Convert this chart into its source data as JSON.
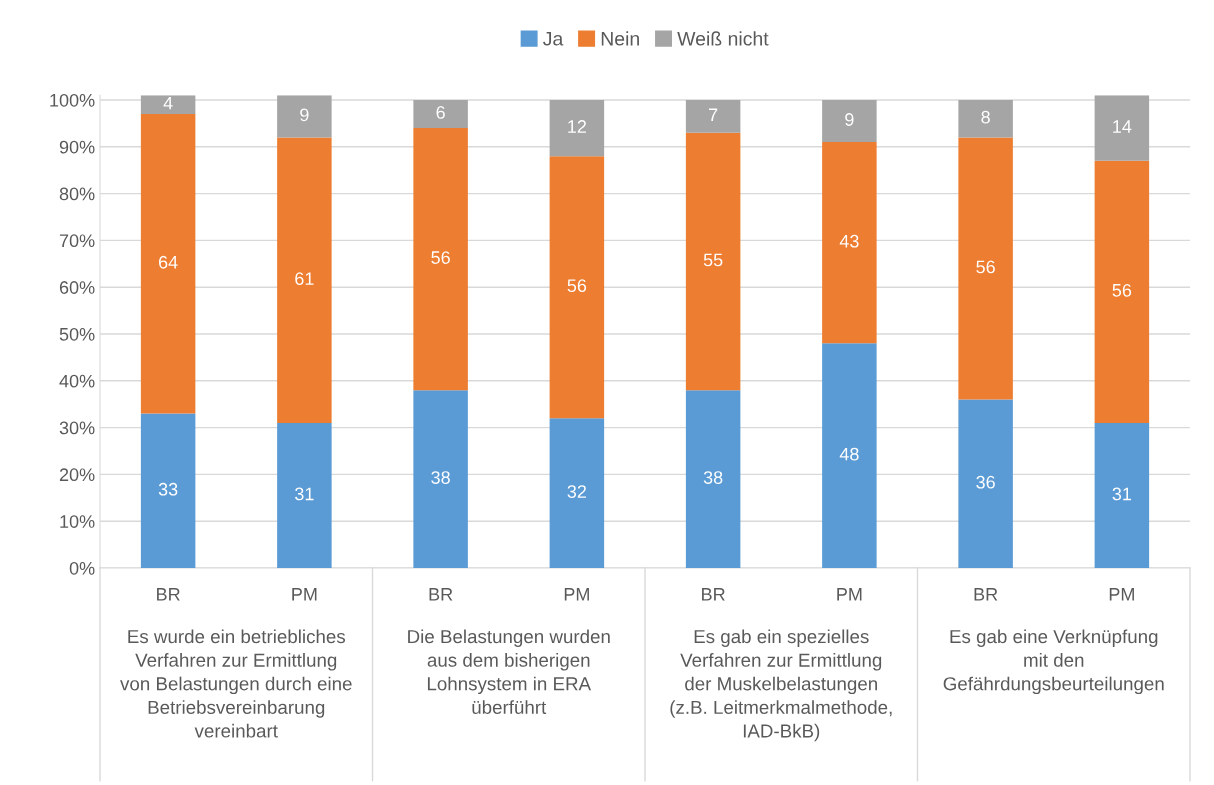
{
  "chart_data": {
    "type": "bar",
    "stacked": true,
    "categories": [
      "BR",
      "PM",
      "BR",
      "PM",
      "BR",
      "PM",
      "BR",
      "PM"
    ],
    "series": [
      {
        "name": "Ja",
        "color": "#5b9bd5",
        "values": [
          33,
          31,
          38,
          32,
          38,
          48,
          36,
          31
        ]
      },
      {
        "name": "Nein",
        "color": "#ed7d31",
        "values": [
          64,
          61,
          56,
          56,
          55,
          43,
          56,
          56
        ]
      },
      {
        "name": "Weiß nicht",
        "color": "#a5a5a5",
        "values": [
          4,
          9,
          6,
          12,
          7,
          9,
          8,
          14
        ]
      }
    ],
    "ylim": [
      0,
      101
    ],
    "yticks": [
      {
        "value": 0,
        "label": "0%"
      },
      {
        "value": 10,
        "label": "10%"
      },
      {
        "value": 20,
        "label": "20%"
      },
      {
        "value": 30,
        "label": "30%"
      },
      {
        "value": 40,
        "label": "40%"
      },
      {
        "value": 50,
        "label": "50%"
      },
      {
        "value": 60,
        "label": "60%"
      },
      {
        "value": 70,
        "label": "70%"
      },
      {
        "value": 80,
        "label": "80%"
      },
      {
        "value": 90,
        "label": "90%"
      },
      {
        "value": 100,
        "label": "100%"
      }
    ],
    "grid": "y",
    "legend": "top",
    "data_labels": true,
    "annotations": [
      "Es wurde ein betriebliches\nVerfahren zur Ermittlung\nvon Belastungen durch eine\nBetriebsvereinbarung\nvereinbart",
      "Die Belastungen wurden\naus dem bisherigen\nLohnsystem in ERA\nüberführt",
      "Es gab ein spezielles\nVerfahren zur Ermittlung\nder Muskelbelastungen\n(z.B. Leitmerkmalmethode,\nIAD-BkB)",
      "Es gab eine Verknüpfung\nmit den\nGefährdungsbeurteilungen"
    ]
  }
}
